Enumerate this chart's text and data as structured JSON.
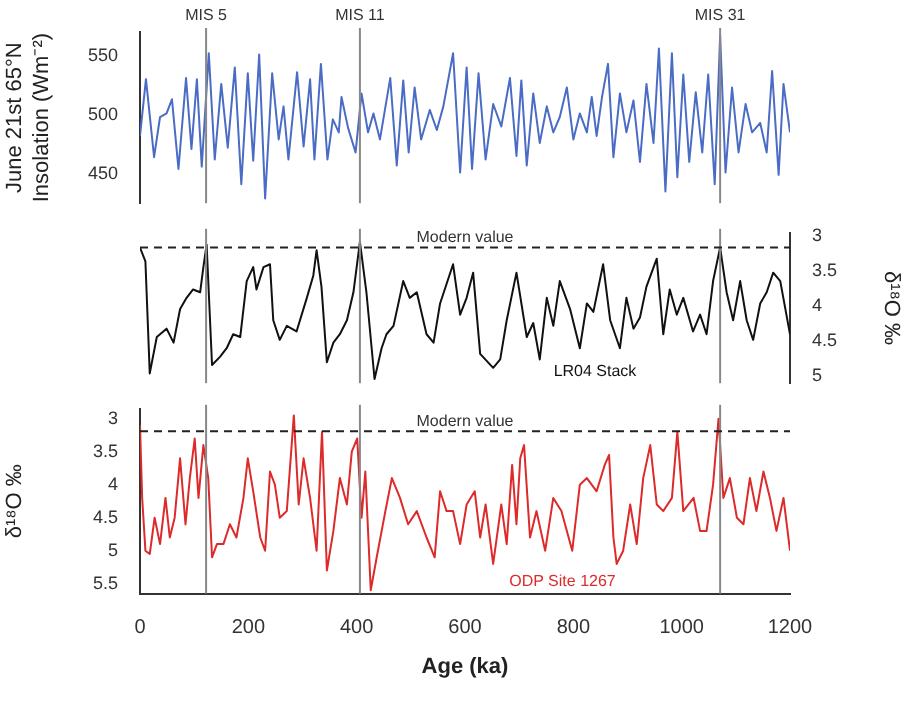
{
  "chart_data": [
    {
      "type": "line",
      "ylabel": "June 21st 65°N Insolation (Wm⁻²)",
      "xlim": [
        0,
        1200
      ],
      "ylim": [
        425,
        570
      ],
      "yticks": [
        450,
        500,
        550
      ],
      "tick_labels": "y",
      "marker": "none",
      "x": [
        0,
        11,
        26,
        37,
        49,
        59,
        71,
        85,
        95,
        105,
        114,
        127,
        138,
        150,
        162,
        175,
        187,
        199,
        209,
        220,
        231,
        244,
        256,
        265,
        274,
        290,
        302,
        314,
        322,
        334,
        346,
        356,
        367,
        372,
        384,
        398,
        409,
        421,
        431,
        443,
        462,
        474,
        486,
        496,
        507,
        519,
        535,
        548,
        560,
        578,
        591,
        603,
        613,
        625,
        638,
        652,
        667,
        683,
        695,
        704,
        714,
        726,
        738,
        751,
        763,
        775,
        788,
        800,
        812,
        825,
        834,
        843,
        853,
        864,
        874,
        886,
        898,
        911,
        923,
        935,
        948,
        958,
        970,
        982,
        992,
        1003,
        1014,
        1026,
        1038,
        1049,
        1061,
        1071,
        1081,
        1093,
        1105,
        1118,
        1130,
        1145,
        1157,
        1167,
        1179,
        1188,
        1200
      ],
      "series": [
        {
          "color": "#4a6cc4",
          "values": [
            482,
            530,
            464,
            498,
            501,
            513,
            454,
            531,
            471,
            530,
            456,
            552,
            462,
            526,
            472,
            540,
            441,
            535,
            461,
            551,
            429,
            535,
            479,
            507,
            462,
            536,
            473,
            530,
            462,
            543,
            462,
            496,
            485,
            515,
            489,
            468,
            518,
            485,
            501,
            479,
            531,
            457,
            529,
            468,
            523,
            479,
            504,
            487,
            507,
            552,
            451,
            540,
            454,
            535,
            462,
            509,
            490,
            531,
            465,
            529,
            457,
            518,
            476,
            507,
            485,
            498,
            523,
            479,
            501,
            485,
            515,
            482,
            515,
            543,
            464,
            518,
            485,
            512,
            460,
            526,
            476,
            556,
            435,
            552,
            447,
            534,
            460,
            519,
            468,
            534,
            441,
            567,
            451,
            523,
            468,
            509,
            485,
            493,
            468,
            537,
            449,
            526,
            485
          ]
        }
      ],
      "ref_lines": [
        {
          "axis": "x",
          "value": 122,
          "label": "MIS 5",
          "color": "#888888"
        },
        {
          "axis": "x",
          "value": 406,
          "label": "MIS 11",
          "color": "#888888"
        },
        {
          "axis": "x",
          "value": 1071,
          "label": "MIS 31",
          "color": "#888888"
        }
      ]
    },
    {
      "type": "line",
      "y2label": "δ¹⁸O ‰",
      "xlim": [
        0,
        1200
      ],
      "y2lim": [
        5.1,
        2.95
      ],
      "y2ticks": [
        3,
        3.5,
        4,
        4.5,
        5
      ],
      "tick_labels": "y",
      "marker": "none",
      "x": [
        0,
        10,
        18,
        31,
        49,
        62,
        74,
        86,
        98,
        111,
        117,
        123,
        133,
        148,
        160,
        172,
        185,
        197,
        209,
        215,
        228,
        240,
        246,
        258,
        271,
        289,
        308,
        320,
        326,
        335,
        345,
        357,
        369,
        382,
        394,
        406,
        418,
        433,
        446,
        455,
        468,
        486,
        498,
        511,
        529,
        542,
        554,
        578,
        591,
        603,
        615,
        628,
        652,
        665,
        677,
        695,
        714,
        726,
        738,
        751,
        763,
        775,
        794,
        812,
        825,
        837,
        855,
        868,
        886,
        898,
        911,
        923,
        935,
        954,
        966,
        978,
        991,
        1003,
        1021,
        1034,
        1046,
        1058,
        1071,
        1083,
        1095,
        1108,
        1120,
        1132,
        1145,
        1157,
        1169,
        1182,
        1200
      ],
      "series": [
        {
          "name": "LR04 Stack",
          "color": "#111111",
          "axis": "y2",
          "values": [
            3.16,
            3.36,
            4.96,
            4.44,
            4.32,
            4.52,
            4.04,
            3.88,
            3.76,
            3.8,
            3.44,
            3.12,
            4.84,
            4.72,
            4.6,
            4.4,
            4.44,
            3.64,
            3.44,
            3.76,
            3.44,
            3.4,
            4.2,
            4.48,
            4.28,
            4.36,
            3.88,
            3.56,
            3.2,
            3.72,
            4.8,
            4.52,
            4.4,
            4.2,
            3.8,
            3.08,
            3.8,
            5.04,
            4.6,
            4.4,
            4.28,
            3.64,
            3.88,
            3.8,
            4.4,
            4.52,
            3.96,
            3.4,
            4.12,
            3.88,
            3.52,
            4.68,
            4.88,
            4.76,
            4.2,
            3.52,
            4.44,
            4.24,
            4.76,
            3.88,
            4.28,
            3.64,
            4.04,
            4.6,
            3.96,
            4.08,
            3.4,
            4.2,
            4.6,
            3.88,
            4.32,
            4.16,
            3.72,
            3.32,
            4.4,
            3.76,
            4.12,
            3.88,
            4.36,
            4.12,
            4.4,
            3.64,
            3.16,
            3.8,
            4.2,
            3.64,
            4.2,
            4.48,
            3.96,
            3.8,
            3.52,
            3.64,
            4.4
          ]
        }
      ],
      "ref_lines": [
        {
          "axis": "x",
          "value": 122,
          "color": "#888888"
        },
        {
          "axis": "x",
          "value": 406,
          "color": "#888888"
        },
        {
          "axis": "x",
          "value": 1071,
          "color": "#888888"
        },
        {
          "axis": "y2",
          "value": 3.16,
          "label": "Modern value",
          "color": "#222222",
          "line_style": "dashed"
        }
      ]
    },
    {
      "type": "line",
      "ylabel": "δ¹⁸O ‰",
      "xlabel": "Age (ka)",
      "xlim": [
        0,
        1200
      ],
      "xticks": [
        0,
        200,
        400,
        600,
        800,
        1000,
        1200
      ],
      "ylim": [
        5.65,
        2.85
      ],
      "yticks": [
        3,
        3.5,
        4,
        4.5,
        5,
        5.5
      ],
      "marker": "none",
      "x": [
        0,
        4,
        10,
        18,
        27,
        37,
        47,
        55,
        64,
        74,
        84,
        92,
        101,
        108,
        117,
        126,
        133,
        142,
        154,
        166,
        178,
        191,
        199,
        209,
        222,
        231,
        240,
        249,
        258,
        271,
        284,
        293,
        302,
        314,
        326,
        336,
        345,
        357,
        369,
        382,
        391,
        401,
        409,
        416,
        426,
        437,
        453,
        465,
        480,
        495,
        511,
        529,
        544,
        554,
        566,
        578,
        591,
        603,
        618,
        628,
        638,
        652,
        667,
        677,
        687,
        695,
        702,
        709,
        720,
        732,
        748,
        763,
        778,
        798,
        812,
        825,
        843,
        858,
        866,
        874,
        880,
        892,
        905,
        917,
        929,
        942,
        954,
        966,
        982,
        992,
        1003,
        1022,
        1034,
        1046,
        1058,
        1068,
        1077,
        1089,
        1102,
        1114,
        1126,
        1138,
        1151,
        1163,
        1175,
        1188,
        1200
      ],
      "series": [
        {
          "name": "ODP Site 1267",
          "color": "#dd2a2a",
          "values": [
            3.1,
            4.2,
            5.0,
            5.05,
            4.5,
            4.9,
            4.2,
            4.8,
            4.5,
            3.6,
            4.6,
            3.9,
            3.3,
            4.2,
            3.4,
            3.9,
            5.1,
            4.9,
            4.9,
            4.6,
            4.8,
            4.2,
            3.6,
            4.1,
            4.8,
            5.0,
            3.8,
            4.0,
            4.5,
            4.4,
            2.95,
            4.3,
            3.6,
            4.2,
            5.0,
            3.2,
            5.3,
            4.7,
            3.9,
            4.3,
            3.5,
            3.3,
            4.5,
            3.8,
            5.6,
            5.1,
            4.4,
            3.9,
            4.2,
            4.6,
            4.4,
            4.8,
            5.1,
            4.1,
            4.4,
            4.4,
            4.9,
            4.3,
            4.1,
            4.8,
            4.3,
            5.2,
            4.3,
            4.9,
            3.7,
            4.6,
            3.6,
            3.4,
            4.8,
            4.4,
            5.0,
            4.2,
            4.4,
            5.0,
            4.0,
            3.9,
            4.1,
            3.7,
            3.55,
            4.8,
            5.2,
            5.0,
            4.3,
            4.9,
            3.9,
            3.4,
            4.3,
            4.4,
            4.2,
            3.2,
            4.4,
            4.2,
            4.7,
            4.7,
            4.0,
            3.0,
            4.2,
            3.9,
            4.5,
            4.6,
            3.9,
            4.4,
            3.8,
            4.2,
            4.7,
            4.2,
            5.0
          ]
        }
      ],
      "ref_lines": [
        {
          "axis": "x",
          "value": 122,
          "color": "#888888"
        },
        {
          "axis": "x",
          "value": 406,
          "color": "#888888"
        },
        {
          "axis": "x",
          "value": 1071,
          "color": "#888888"
        },
        {
          "axis": "y",
          "value": 3.19,
          "label": "Modern value",
          "color": "#222222",
          "line_style": "dashed"
        }
      ]
    }
  ]
}
